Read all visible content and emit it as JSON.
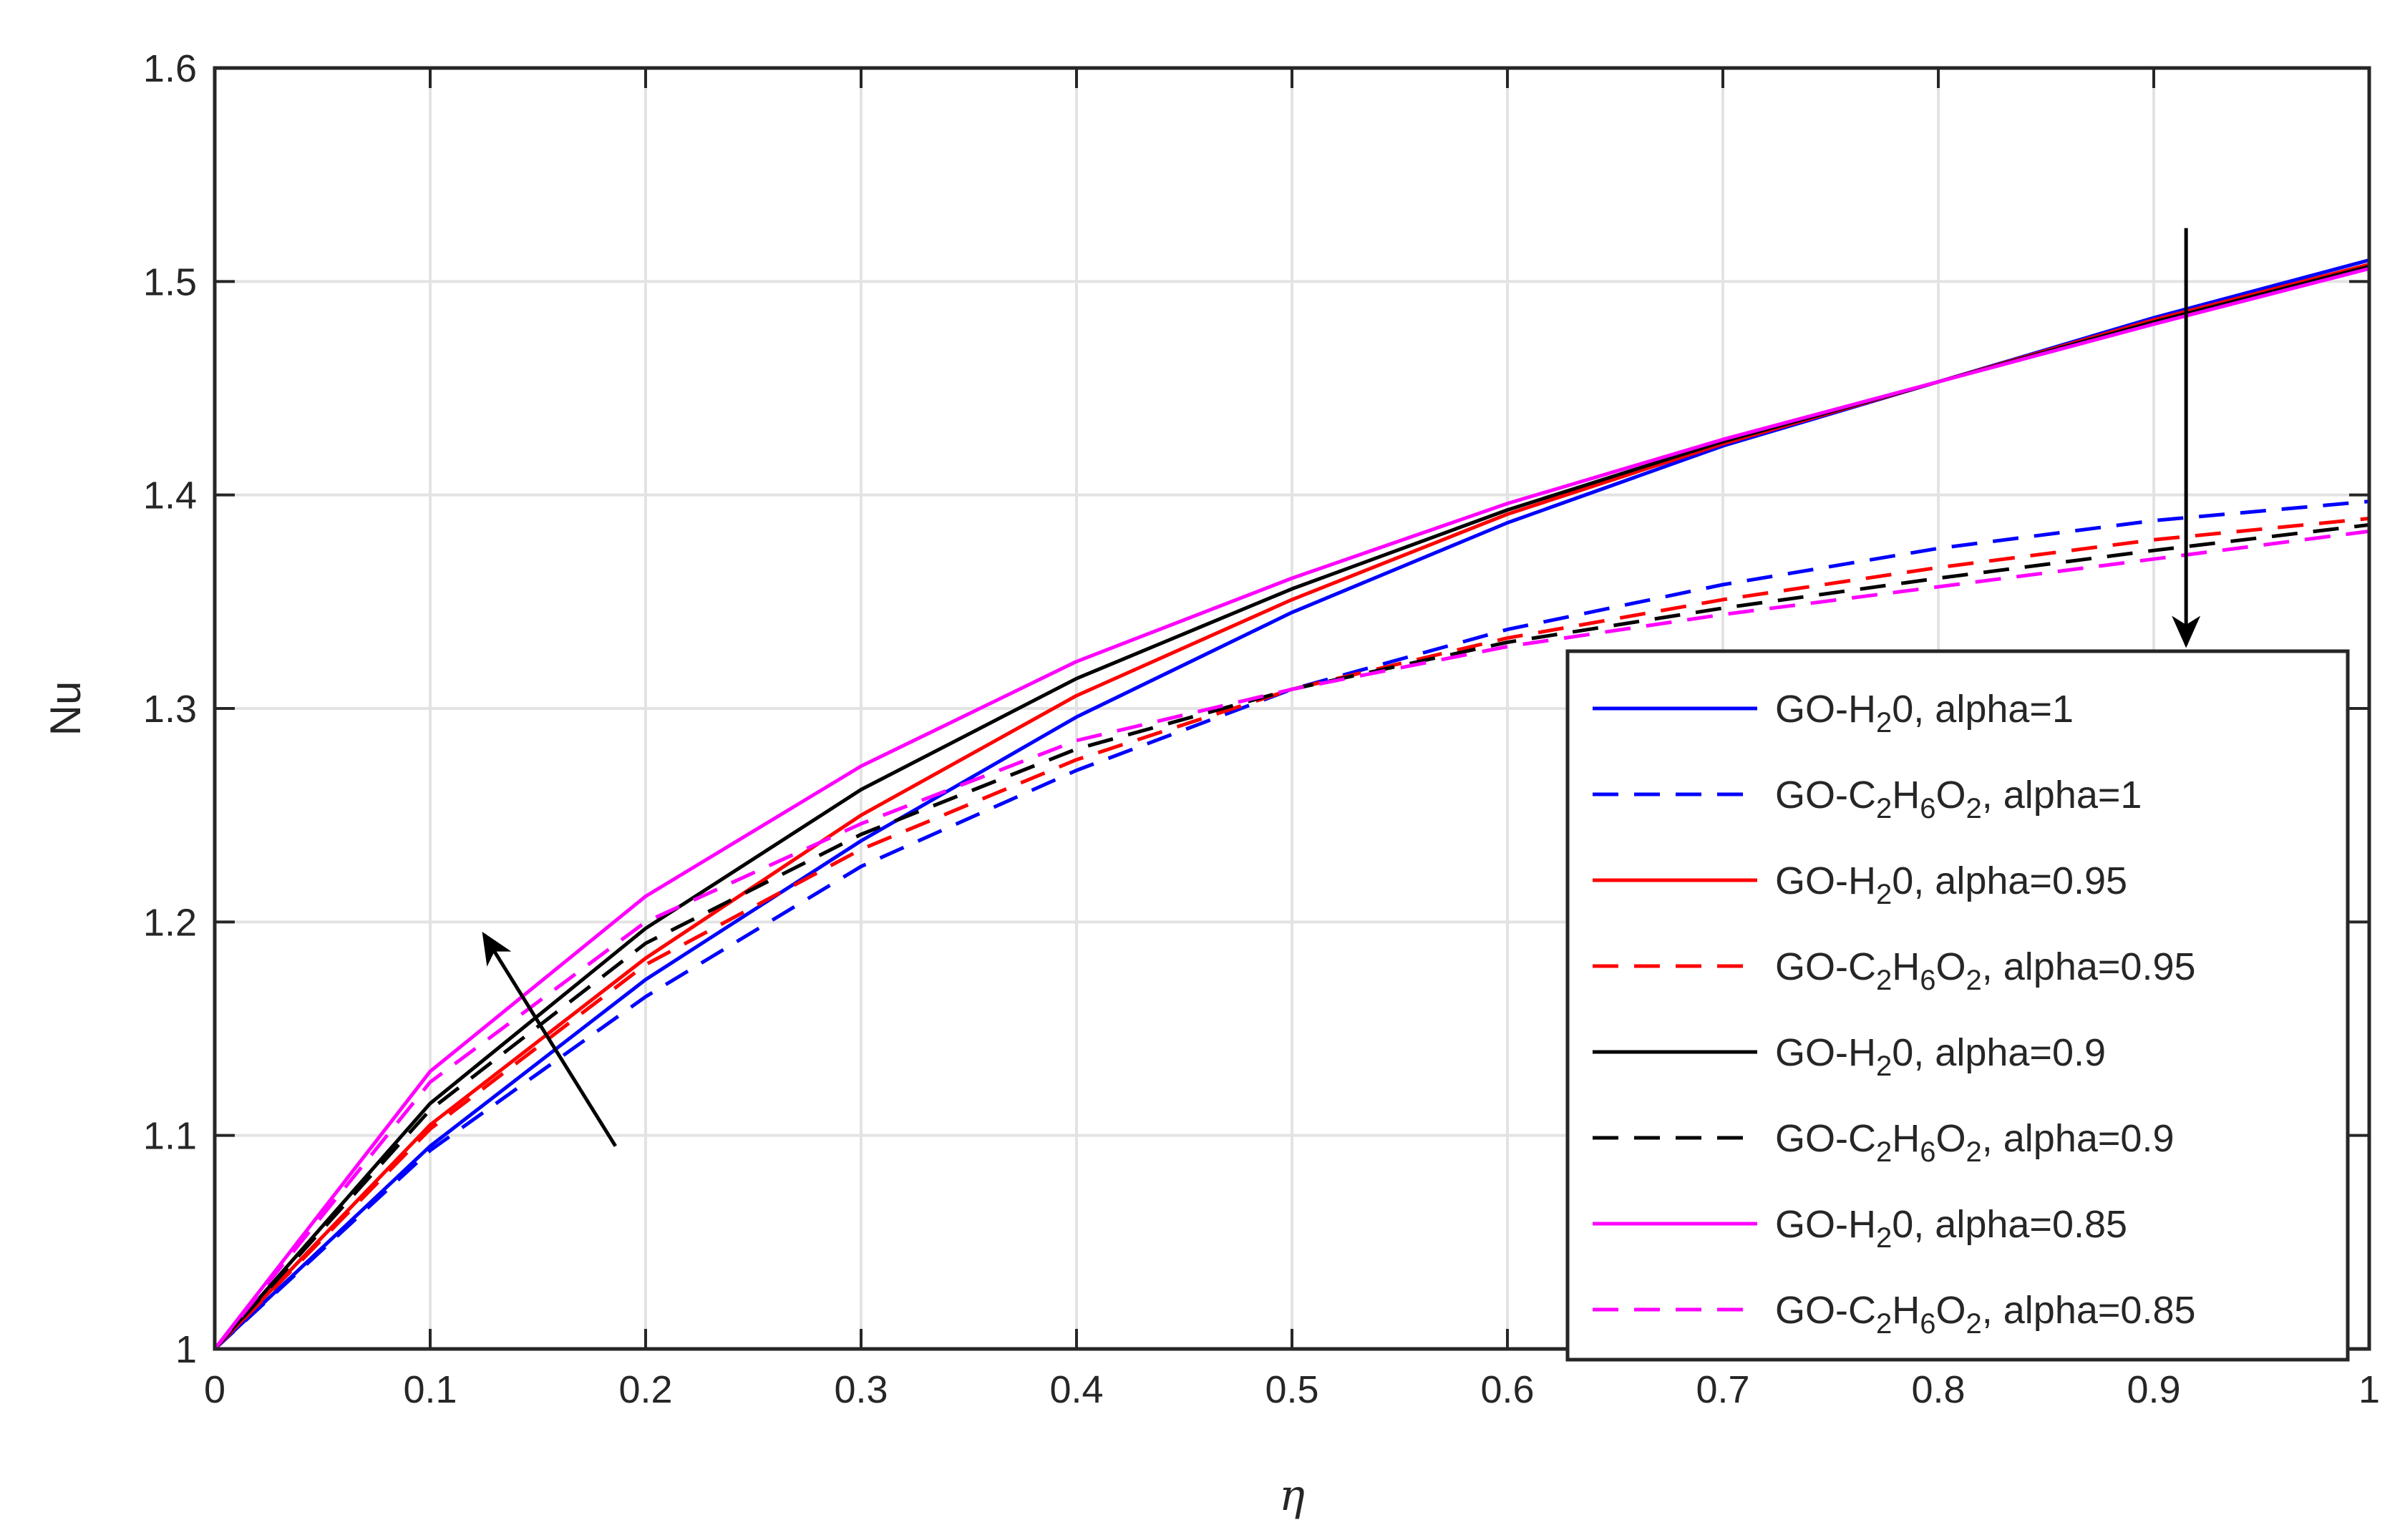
{
  "chart_data": {
    "type": "line",
    "title": "",
    "xlabel": "η",
    "ylabel": "Nu",
    "xlim": [
      0,
      1
    ],
    "ylim": [
      1,
      1.6
    ],
    "xticks": [
      0,
      0.1,
      0.2,
      0.3,
      0.4,
      0.5,
      0.6,
      0.7,
      0.8,
      0.9,
      1
    ],
    "yticks": [
      1,
      1.1,
      1.2,
      1.3,
      1.4,
      1.5,
      1.6
    ],
    "xtick_labels": [
      "0",
      "0.1",
      "0.2",
      "0.3",
      "0.4",
      "0.5",
      "0.6",
      "0.7",
      "0.8",
      "0.9",
      "1"
    ],
    "ytick_labels": [
      "1",
      "1.1",
      "1.2",
      "1.3",
      "1.4",
      "1.5",
      "1.6"
    ],
    "grid": true,
    "legend_position": "bottom-right",
    "x": [
      0,
      0.1,
      0.2,
      0.3,
      0.4,
      0.5,
      0.6,
      0.7,
      0.8,
      0.9,
      1
    ],
    "series": [
      {
        "name": "GO-H20, alpha=1",
        "legend": {
          "pre": "GO-H",
          "sub1": "2",
          "mid": "0",
          "sub2": "",
          "post": ", alpha=1"
        },
        "color": "#0000ff",
        "dash": "solid",
        "values": [
          1.0,
          1.095,
          1.173,
          1.238,
          1.296,
          1.345,
          1.387,
          1.423,
          1.453,
          1.483,
          1.51
        ]
      },
      {
        "name": "GO-C2H6O2, alpha=1",
        "legend": {
          "pre": "GO-C",
          "sub1": "2",
          "mid": "H",
          "sub2": "6",
          "mid2": "O",
          "sub3": "2",
          "post": ", alpha=1"
        },
        "color": "#0000ff",
        "dash": "dashed",
        "values": [
          1.0,
          1.093,
          1.165,
          1.226,
          1.271,
          1.309,
          1.337,
          1.358,
          1.375,
          1.388,
          1.397
        ]
      },
      {
        "name": "GO-H20, alpha=0.95",
        "legend": {
          "pre": "GO-H",
          "sub1": "2",
          "mid": "0",
          "sub2": "",
          "post": ", alpha=0.95"
        },
        "color": "#ff0000",
        "dash": "solid",
        "values": [
          1.0,
          1.105,
          1.183,
          1.25,
          1.306,
          1.351,
          1.391,
          1.424,
          1.453,
          1.482,
          1.508
        ]
      },
      {
        "name": "GO-C2H6O2, alpha=0.95",
        "legend": {
          "pre": "GO-C",
          "sub1": "2",
          "mid": "H",
          "sub2": "6",
          "mid2": "O",
          "sub3": "2",
          "post": ", alpha=0.95"
        },
        "color": "#ff0000",
        "dash": "dashed",
        "values": [
          1.0,
          1.103,
          1.18,
          1.234,
          1.276,
          1.309,
          1.333,
          1.351,
          1.366,
          1.379,
          1.389
        ]
      },
      {
        "name": "GO-H20, alpha=0.9",
        "legend": {
          "pre": "GO-H",
          "sub1": "2",
          "mid": "0",
          "sub2": "",
          "post": ", alpha=0.9"
        },
        "color": "#000000",
        "dash": "solid",
        "values": [
          1.0,
          1.115,
          1.197,
          1.262,
          1.314,
          1.356,
          1.393,
          1.425,
          1.453,
          1.481,
          1.507
        ]
      },
      {
        "name": "GO-C2H6O2, alpha=0.9",
        "legend": {
          "pre": "GO-C",
          "sub1": "2",
          "mid": "H",
          "sub2": "6",
          "mid2": "O",
          "sub3": "2",
          "post": ", alpha=0.9"
        },
        "color": "#000000",
        "dash": "dashed",
        "values": [
          1.0,
          1.112,
          1.19,
          1.241,
          1.281,
          1.309,
          1.331,
          1.347,
          1.361,
          1.374,
          1.386
        ]
      },
      {
        "name": "GO-H20, alpha=0.85",
        "legend": {
          "pre": "GO-H",
          "sub1": "2",
          "mid": "0",
          "sub2": "",
          "post": ", alpha=0.85"
        },
        "color": "#ff00ff",
        "dash": "solid",
        "values": [
          1.0,
          1.13,
          1.212,
          1.273,
          1.322,
          1.361,
          1.396,
          1.426,
          1.453,
          1.48,
          1.506
        ]
      },
      {
        "name": "GO-C2H6O2, alpha=0.85",
        "legend": {
          "pre": "GO-C",
          "sub1": "2",
          "mid": "H",
          "sub2": "6",
          "mid2": "O",
          "sub3": "2",
          "post": ", alpha=0.85"
        },
        "color": "#ff00ff",
        "dash": "dashed",
        "values": [
          1.0,
          1.125,
          1.2,
          1.246,
          1.285,
          1.309,
          1.329,
          1.344,
          1.357,
          1.37,
          1.383
        ]
      }
    ],
    "annotations": [
      {
        "type": "arrow",
        "from": [
          0.186,
          1.095
        ],
        "to": [
          0.125,
          1.194
        ]
      },
      {
        "type": "arrow",
        "from": [
          0.915,
          1.525
        ],
        "to": [
          0.915,
          1.33
        ]
      }
    ]
  }
}
